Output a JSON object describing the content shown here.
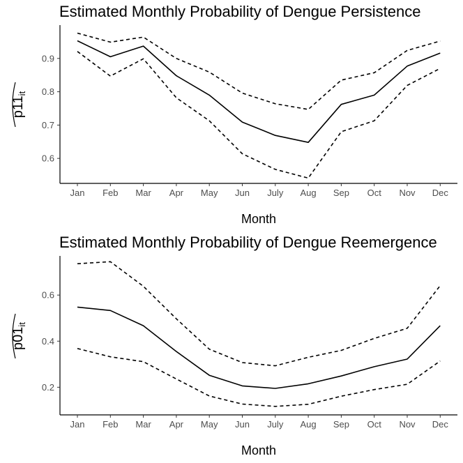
{
  "chart_data": [
    {
      "type": "line",
      "title": "Estimated Monthly Probability of Dengue Persistence",
      "xlabel": "Month",
      "ylabel_main": "p11",
      "ylabel_sub": "it",
      "categories": [
        "Jan",
        "Feb",
        "Mar",
        "Apr",
        "May",
        "Jun",
        "July",
        "Aug",
        "Sep",
        "Oct",
        "Nov",
        "Dec"
      ],
      "ylim": [
        0.525,
        1.0
      ],
      "yticks": [
        0.6,
        0.7,
        0.8,
        0.9
      ],
      "ytick_labels": [
        "0.6",
        "0.7",
        "0.8",
        "0.9"
      ],
      "grid": false,
      "series": [
        {
          "role": "estimate",
          "style": "solid",
          "values": [
            0.953,
            0.905,
            0.937,
            0.848,
            0.79,
            0.709,
            0.669,
            0.648,
            0.762,
            0.79,
            0.877,
            0.916
          ]
        },
        {
          "role": "upper",
          "style": "dashed",
          "values": [
            0.976,
            0.949,
            0.964,
            0.9,
            0.859,
            0.796,
            0.764,
            0.747,
            0.835,
            0.857,
            0.924,
            0.952
          ]
        },
        {
          "role": "lower",
          "style": "dashed",
          "values": [
            0.921,
            0.847,
            0.899,
            0.782,
            0.713,
            0.614,
            0.567,
            0.541,
            0.68,
            0.713,
            0.819,
            0.87
          ]
        }
      ]
    },
    {
      "type": "line",
      "title": "Estimated Monthly Probability of Dengue Reemergence",
      "xlabel": "Month",
      "ylabel_main": "p01",
      "ylabel_sub": "it",
      "categories": [
        "Jan",
        "Feb",
        "Mar",
        "Apr",
        "May",
        "Jun",
        "July",
        "Aug",
        "Sep",
        "Oct",
        "Nov",
        "Dec"
      ],
      "ylim": [
        0.08,
        0.77
      ],
      "yticks": [
        0.2,
        0.4,
        0.6
      ],
      "ytick_labels": [
        "0.2",
        "0.4",
        "0.6"
      ],
      "grid": false,
      "series": [
        {
          "role": "estimate",
          "style": "solid",
          "values": [
            0.548,
            0.533,
            0.467,
            0.355,
            0.252,
            0.206,
            0.195,
            0.215,
            0.249,
            0.289,
            0.322,
            0.467
          ]
        },
        {
          "role": "upper",
          "style": "dashed",
          "values": [
            0.736,
            0.745,
            0.638,
            0.497,
            0.365,
            0.307,
            0.293,
            0.33,
            0.36,
            0.412,
            0.456,
            0.641
          ]
        },
        {
          "role": "lower",
          "style": "dashed",
          "values": [
            0.368,
            0.332,
            0.311,
            0.236,
            0.162,
            0.127,
            0.117,
            0.126,
            0.161,
            0.19,
            0.213,
            0.314
          ]
        }
      ]
    }
  ]
}
